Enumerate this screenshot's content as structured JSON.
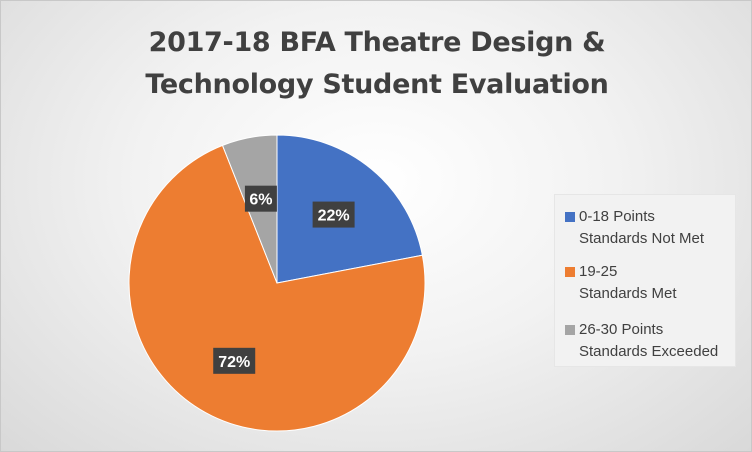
{
  "chart_data": {
    "type": "pie",
    "title": "2017-18 BFA Theatre Design & Technology Student Evaluation",
    "title_lines": [
      "2017-18 BFA Theatre Design &",
      "Technology Student Evaluation"
    ],
    "slices": [
      {
        "label_lines": [
          "0-18 Points",
          "Standards Not Met"
        ],
        "value": 22,
        "data_label": "22%",
        "color": "#4472C4"
      },
      {
        "label_lines": [
          "19-25",
          "Standards Met"
        ],
        "value": 72,
        "data_label": "72%",
        "color": "#ED7D31"
      },
      {
        "label_lines": [
          "26-30 Points",
          "Standards Exceeded"
        ],
        "value": 6,
        "data_label": "6%",
        "color": "#A5A5A5"
      }
    ],
    "legend_position": "right"
  }
}
